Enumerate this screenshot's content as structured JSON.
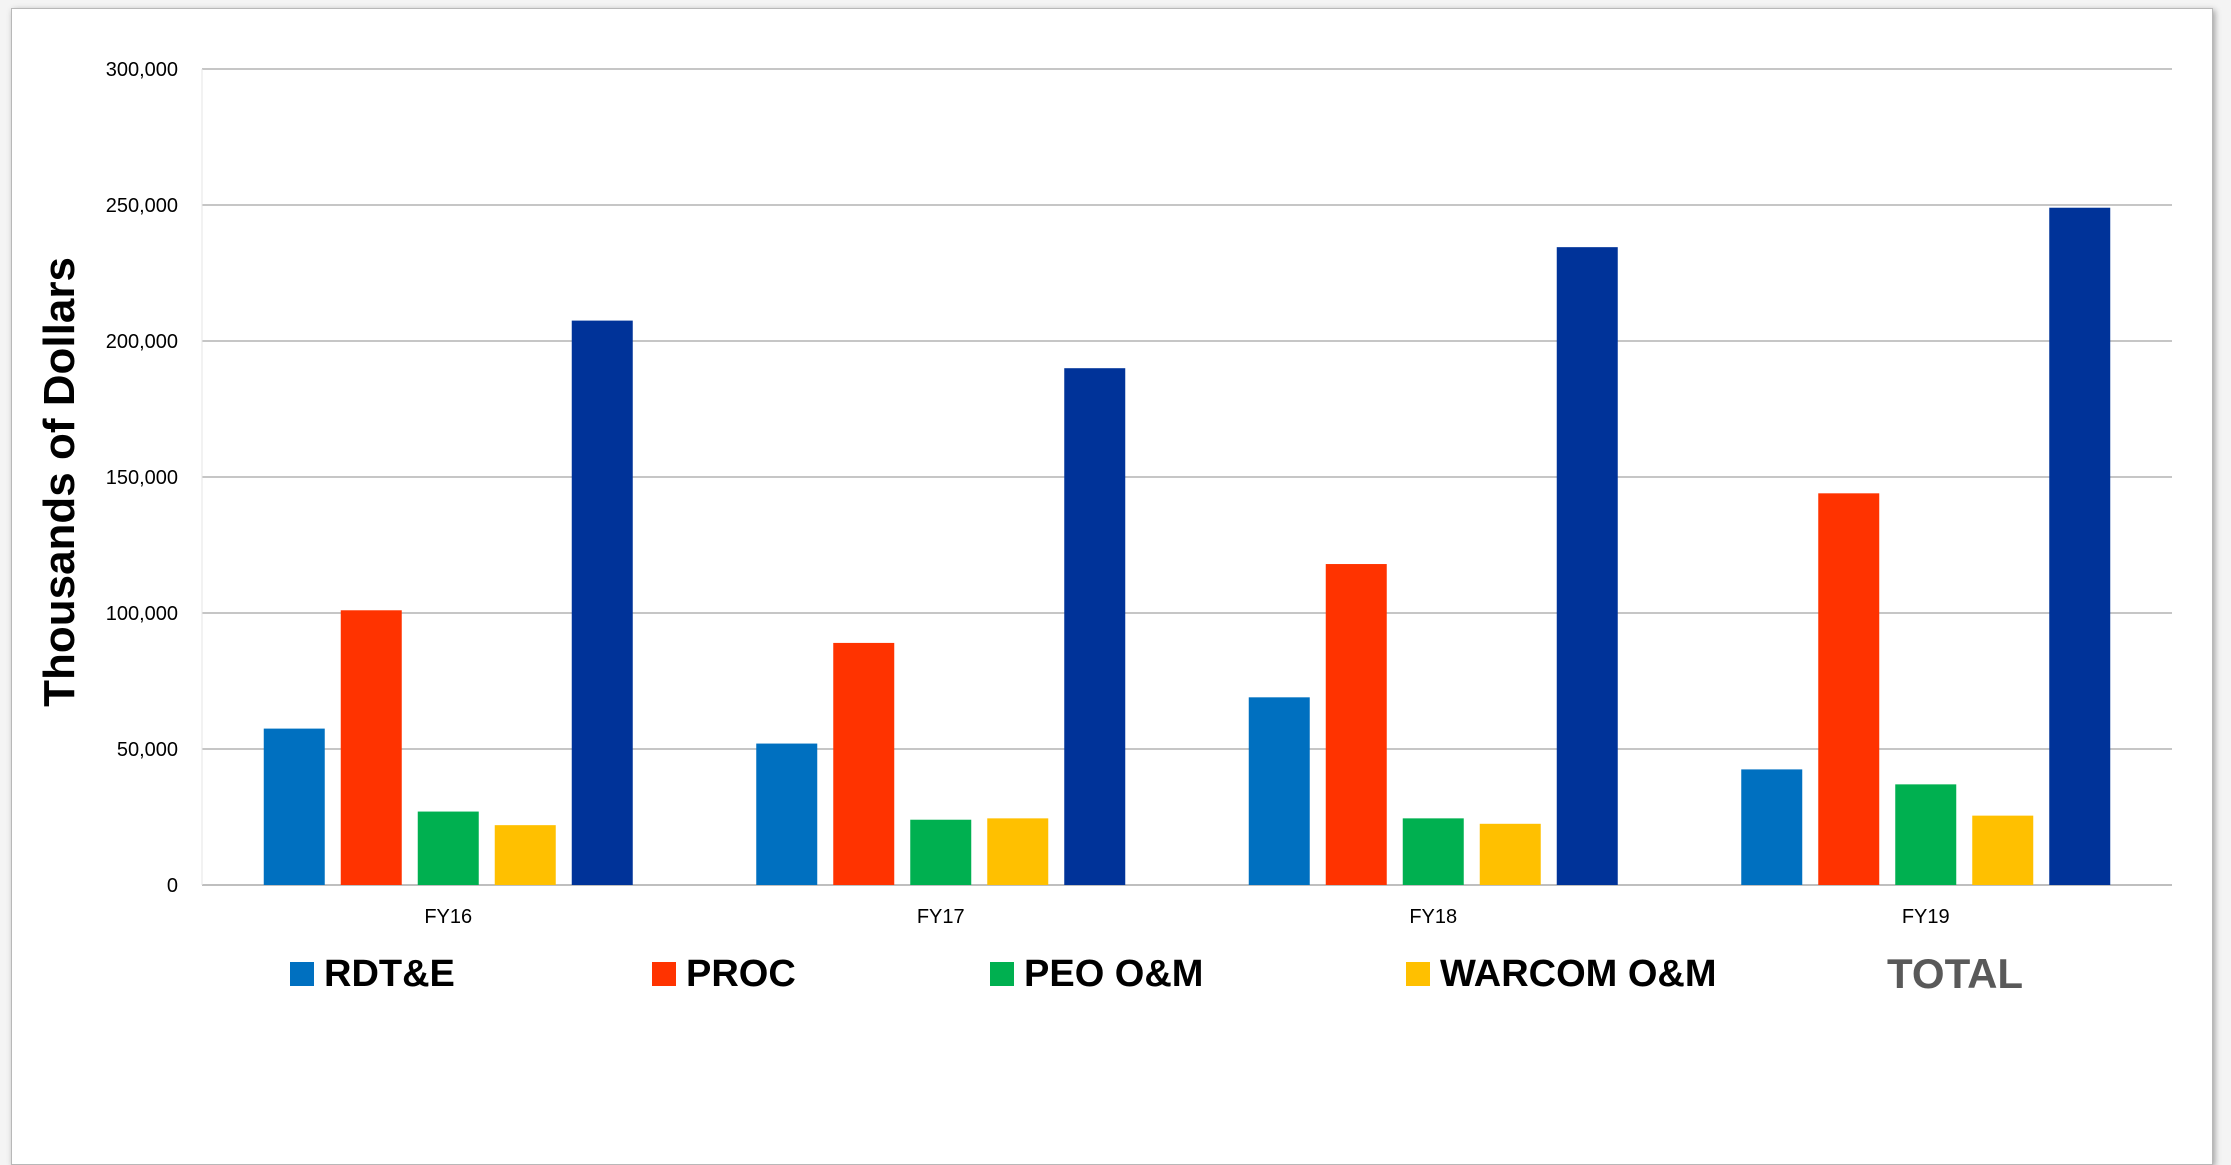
{
  "chart_data": {
    "type": "bar",
    "title": "",
    "xlabel": "",
    "ylabel": "Thousands of Dollars",
    "ylim": [
      0,
      300000
    ],
    "yticks": [
      0,
      50000,
      100000,
      150000,
      200000,
      250000,
      300000
    ],
    "ytick_labels": [
      "0",
      "50,000",
      "100,000",
      "150,000",
      "200,000",
      "250,000",
      "300,000"
    ],
    "grid": true,
    "legend_position": "bottom",
    "categories": [
      "FY16",
      "FY17",
      "FY18",
      "FY19"
    ],
    "series": [
      {
        "name": "RDT&E",
        "color": "#0070C0",
        "values": [
          57500,
          52000,
          69000,
          42500
        ]
      },
      {
        "name": "PROC",
        "color": "#FF3300",
        "values": [
          101000,
          89000,
          118000,
          144000
        ]
      },
      {
        "name": "PEO O&M",
        "color": "#00B050",
        "values": [
          27000,
          24000,
          24500,
          37000
        ]
      },
      {
        "name": "WARCOM O&M",
        "color": "#FFC000",
        "values": [
          22000,
          24500,
          22500,
          25500
        ]
      },
      {
        "name": "TOTAL",
        "color": "#003399",
        "values": [
          207500,
          190000,
          234500,
          249000
        ]
      }
    ],
    "legend_colors": {
      "TOTAL_text": "#595959"
    }
  }
}
